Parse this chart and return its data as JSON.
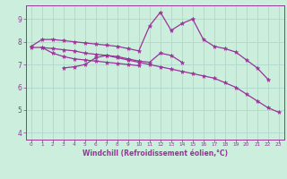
{
  "xlabel": "Windchill (Refroidissement éolien,°C)",
  "bg_color": "#cceedd",
  "line_color": "#993399",
  "xlim": [
    -0.5,
    23.5
  ],
  "ylim": [
    3.7,
    9.6
  ],
  "xticks": [
    0,
    1,
    2,
    3,
    4,
    5,
    6,
    7,
    8,
    9,
    10,
    11,
    12,
    13,
    14,
    15,
    16,
    17,
    18,
    19,
    20,
    21,
    22,
    23
  ],
  "yticks": [
    4,
    5,
    6,
    7,
    8,
    9
  ],
  "grid_color": "#aad4cc",
  "series": [
    {
      "x": [
        0,
        1,
        2,
        3,
        4,
        5,
        6,
        7,
        8,
        9,
        10,
        11,
        12,
        13,
        14,
        15,
        16,
        17,
        18,
        19,
        20,
        21,
        22
      ],
      "y": [
        7.8,
        8.1,
        8.1,
        8.05,
        8.0,
        7.95,
        7.9,
        7.85,
        7.8,
        7.7,
        7.6,
        8.7,
        9.3,
        8.5,
        8.8,
        9.0,
        8.1,
        7.8,
        7.7,
        7.55,
        7.2,
        6.85,
        6.35
      ]
    },
    {
      "x": [
        1,
        2,
        3,
        4,
        5,
        6,
        7,
        8,
        9,
        10
      ],
      "y": [
        7.75,
        7.5,
        7.35,
        7.25,
        7.2,
        7.15,
        7.1,
        7.05,
        7.0,
        6.95
      ]
    },
    {
      "x": [
        3,
        4,
        5,
        6,
        7,
        8,
        9,
        10,
        11,
        12,
        13,
        14
      ],
      "y": [
        6.85,
        6.9,
        7.0,
        7.3,
        7.4,
        7.35,
        7.25,
        7.15,
        7.1,
        7.5,
        7.4,
        7.1
      ]
    },
    {
      "x": [
        0,
        1,
        2,
        3,
        4,
        5,
        6,
        7,
        8,
        9,
        10,
        11,
        12,
        13,
        14,
        15,
        16,
        17,
        18,
        19,
        20,
        21,
        22,
        23
      ],
      "y": [
        7.75,
        7.75,
        7.7,
        7.65,
        7.6,
        7.5,
        7.45,
        7.4,
        7.3,
        7.2,
        7.1,
        7.0,
        6.9,
        6.8,
        6.7,
        6.6,
        6.5,
        6.4,
        6.2,
        6.0,
        5.7,
        5.4,
        5.1,
        4.9
      ]
    }
  ]
}
